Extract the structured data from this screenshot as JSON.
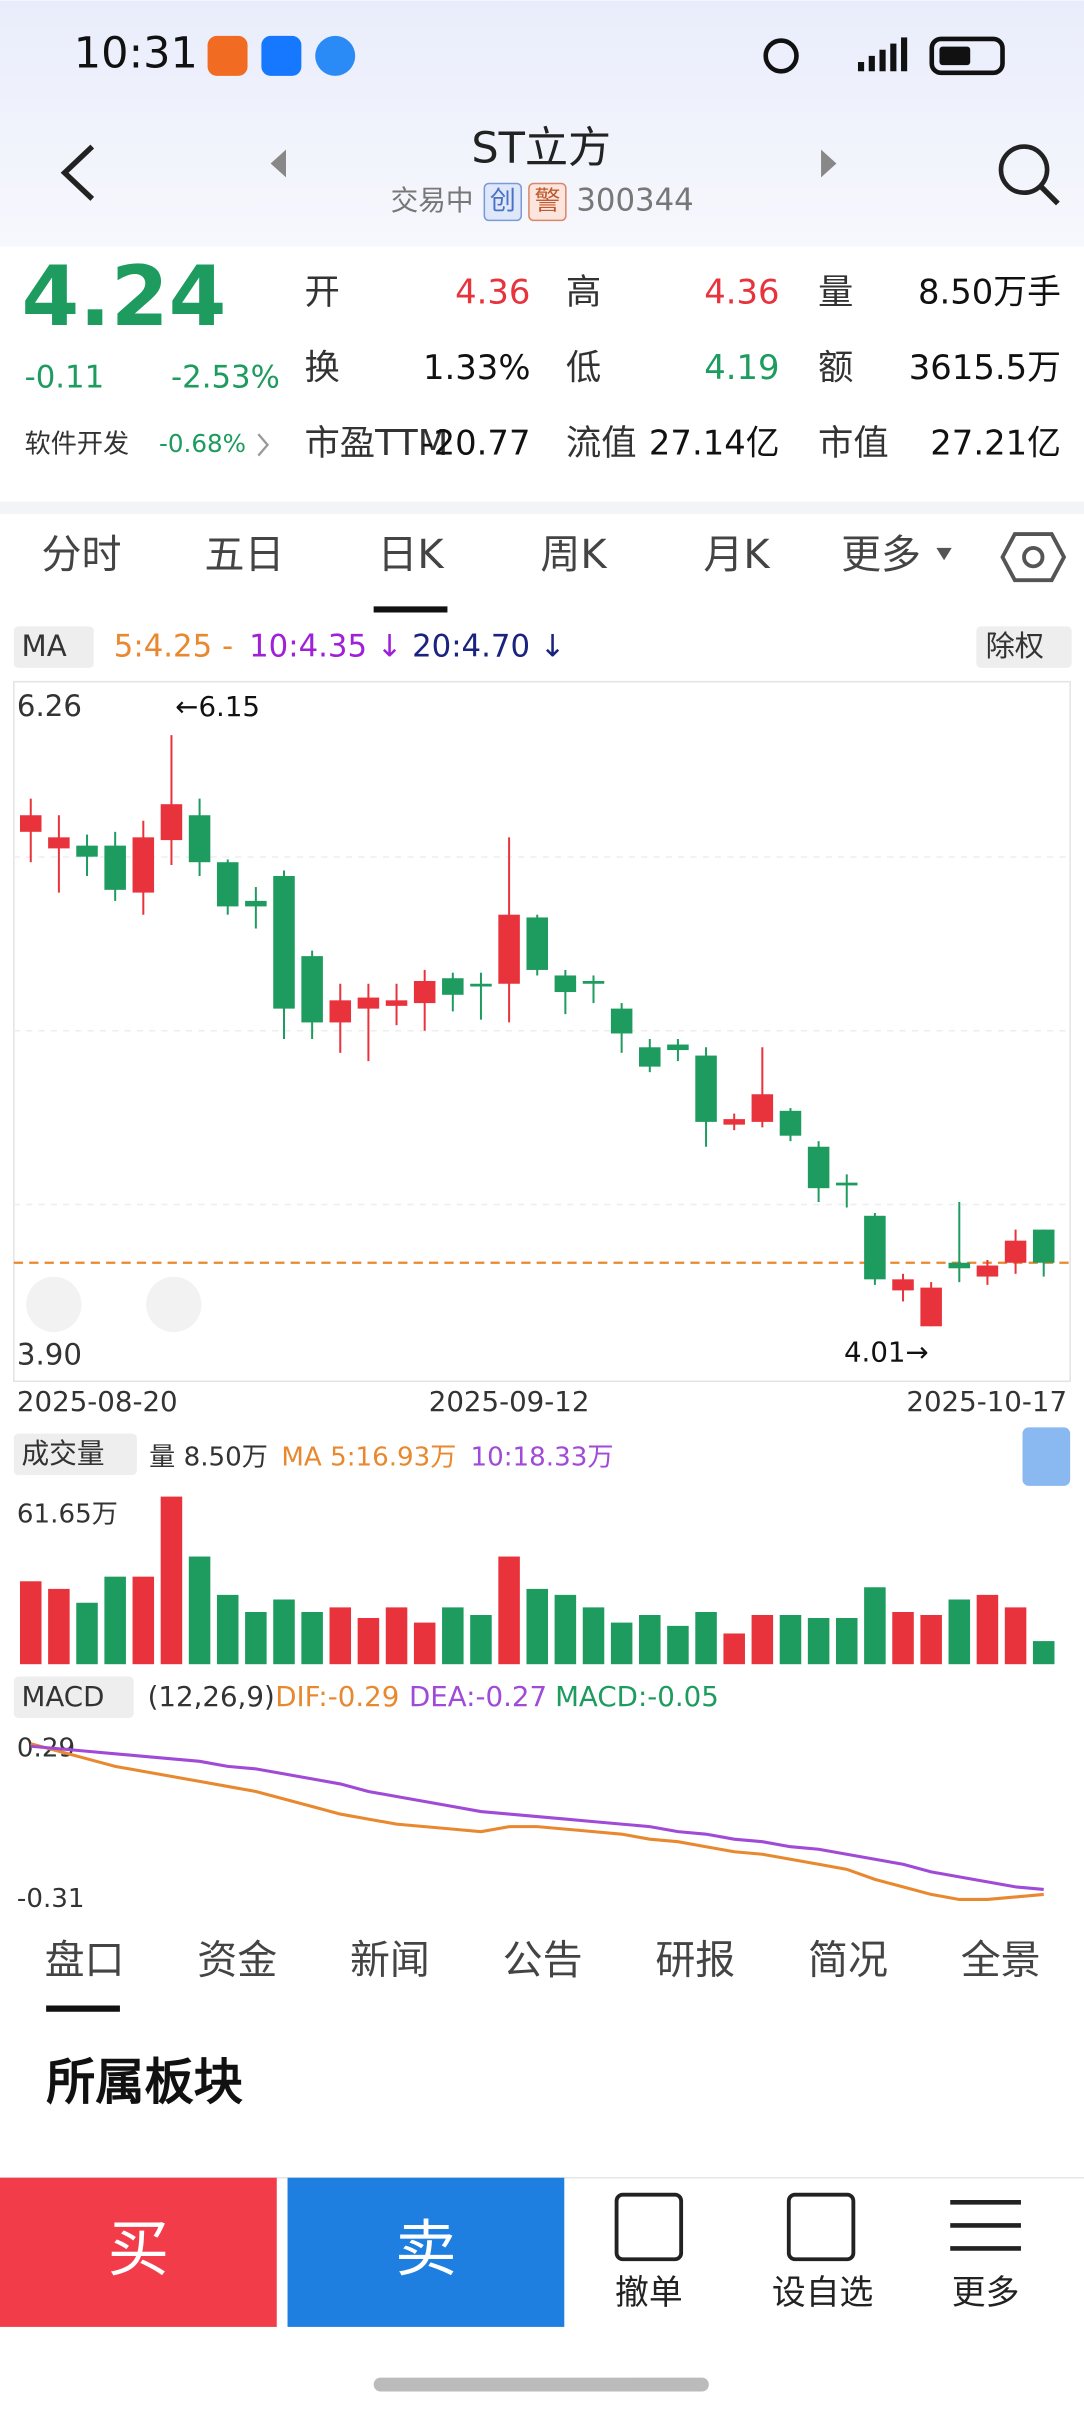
{
  "status_bar": {
    "time": "10:31"
  },
  "header": {
    "title": "ST立方",
    "status": "交易中",
    "badges": [
      "创",
      "警"
    ],
    "code": "300344"
  },
  "quote": {
    "price": "4.24",
    "change": "-0.11",
    "change_pct": "-2.53%",
    "sector": "软件开发",
    "sector_pct": "-0.68%",
    "fields": [
      {
        "label": "开",
        "value": "4.36"
      },
      {
        "label": "高",
        "value": "4.36"
      },
      {
        "label": "量",
        "value": "8.50万手"
      },
      {
        "label": "换",
        "value": "1.33%"
      },
      {
        "label": "低",
        "value": "4.19"
      },
      {
        "label": "额",
        "value": "3615.5万"
      },
      {
        "label": "市盈TTM",
        "value": "-20.77"
      },
      {
        "label": "流值",
        "value": "27.14亿"
      },
      {
        "label": "市值",
        "value": "27.21亿"
      }
    ]
  },
  "period_tabs": [
    "分时",
    "五日",
    "日K",
    "周K",
    "月K",
    "更多"
  ],
  "ma_legend": {
    "label": "MA",
    "ma5": "5:4.25 -",
    "ma10": "10:4.35 ↓",
    "ma20": "20:4.70 ↓",
    "adjust": "除权"
  },
  "chart_data": [
    {
      "type": "candlestick",
      "up_color": "#e8333c",
      "down_color": "#1e9b5f",
      "categories": [
        "2025-08-20",
        null,
        null,
        null,
        null,
        null,
        null,
        null,
        null,
        null,
        null,
        null,
        null,
        null,
        null,
        null,
        null,
        "2025-09-12",
        null,
        null,
        null,
        null,
        null,
        null,
        null,
        null,
        null,
        null,
        null,
        null,
        null,
        null,
        null,
        null,
        null,
        null,
        "2025-10-17"
      ],
      "open": [
        5.8,
        5.74,
        5.75,
        5.75,
        5.58,
        5.77,
        5.86,
        5.69,
        5.55,
        5.64,
        5.35,
        5.11,
        5.16,
        5.17,
        5.18,
        5.27,
        5.25,
        5.25,
        5.49,
        5.28,
        5.26,
        5.16,
        5.02,
        5.03,
        4.99,
        4.74,
        4.75,
        4.79,
        4.66,
        4.53,
        4.41,
        4.14,
        4.01,
        4.24,
        4.19,
        4.24,
        4.36
      ],
      "close": [
        5.86,
        5.78,
        5.71,
        5.59,
        5.78,
        5.9,
        5.69,
        5.53,
        5.53,
        5.16,
        5.11,
        5.19,
        5.2,
        5.19,
        5.26,
        5.21,
        5.24,
        5.5,
        5.3,
        5.22,
        5.25,
        5.07,
        4.95,
        5.01,
        4.75,
        4.76,
        4.85,
        4.7,
        4.51,
        4.52,
        4.18,
        4.18,
        4.15,
        4.22,
        4.23,
        4.32,
        4.24
      ],
      "high": [
        5.92,
        5.86,
        5.79,
        5.8,
        5.84,
        6.15,
        5.92,
        5.7,
        5.6,
        5.66,
        5.37,
        5.25,
        5.25,
        5.25,
        5.3,
        5.29,
        5.29,
        5.78,
        5.5,
        5.3,
        5.28,
        5.18,
        5.05,
        5.05,
        5.02,
        4.78,
        5.02,
        4.8,
        4.68,
        4.56,
        4.42,
        4.2,
        4.17,
        4.46,
        4.25,
        4.36,
        4.36
      ],
      "low": [
        5.69,
        5.58,
        5.64,
        5.55,
        5.5,
        5.68,
        5.64,
        5.5,
        5.45,
        5.05,
        5.05,
        5.0,
        4.97,
        5.1,
        5.08,
        5.15,
        5.12,
        5.11,
        5.28,
        5.14,
        5.18,
        5.0,
        4.93,
        4.97,
        4.66,
        4.72,
        4.73,
        4.68,
        4.46,
        4.44,
        4.16,
        4.1,
        4.01,
        4.17,
        4.16,
        4.2,
        4.19
      ],
      "ylim": [
        3.9,
        6.26
      ],
      "yticks": [
        6.26,
        {
          "value": 3.9,
          "label": "3.90"
        }
      ],
      "annotations": [
        "←6.15",
        "4.01→"
      ]
    },
    {
      "type": "bar",
      "title": "成交量",
      "legend": [
        "量 8.50万",
        "MA 5:16.93万",
        "10:18.33万"
      ],
      "values": [
        30.5,
        27.7,
        22.6,
        32.2,
        32.2,
        61.65,
        39.6,
        25.5,
        19.2,
        23.8,
        19.2,
        20.9,
        17.0,
        20.9,
        15.3,
        20.9,
        18.1,
        39.6,
        27.7,
        25.5,
        20.9,
        15.3,
        18.1,
        14.1,
        19.2,
        11.3,
        18.1,
        18.1,
        17.0,
        17.0,
        28.3,
        19.2,
        18.1,
        23.8,
        25.5,
        20.9,
        8.5
      ],
      "ylim": [
        0,
        61.65
      ],
      "yticks": [
        {
          "value": 61.65,
          "label": "61.65万"
        }
      ]
    },
    {
      "type": "line",
      "title": "MACD",
      "params": "(12,26,9)",
      "legend": [
        "DIF:-0.29",
        "DEA:-0.27",
        "MACD:-0.05"
      ],
      "series": [
        {
          "color": "#e8892f",
          "values": [
            0.31,
            0.28,
            0.25,
            0.22,
            0.2,
            0.18,
            0.16,
            0.14,
            0.12,
            0.09,
            0.06,
            0.03,
            0.01,
            -0.01,
            -0.02,
            -0.03,
            -0.04,
            -0.02,
            -0.02,
            -0.03,
            -0.04,
            -0.05,
            -0.07,
            -0.08,
            -0.1,
            -0.12,
            -0.13,
            -0.15,
            -0.17,
            -0.19,
            -0.23,
            -0.26,
            -0.29,
            -0.31,
            -0.31,
            -0.3,
            -0.29
          ]
        },
        {
          "color": "#a04ad8",
          "values": [
            0.3,
            0.29,
            0.28,
            0.27,
            0.26,
            0.25,
            0.24,
            0.22,
            0.21,
            0.19,
            0.17,
            0.15,
            0.12,
            0.1,
            0.08,
            0.06,
            0.04,
            0.03,
            0.02,
            0.01,
            0.0,
            -0.01,
            -0.02,
            -0.04,
            -0.05,
            -0.07,
            -0.08,
            -0.1,
            -0.11,
            -0.13,
            -0.15,
            -0.17,
            -0.2,
            -0.22,
            -0.24,
            -0.26,
            -0.27
          ]
        }
      ],
      "ylim": [
        -0.31,
        0.29
      ],
      "yticks": [
        0.29,
        -0.31
      ]
    }
  ],
  "detail_tabs": [
    "盘口",
    "资金",
    "新闻",
    "公告",
    "研报",
    "简况",
    "全景"
  ],
  "section_title": "所属板块",
  "bottom_bar": {
    "buy": "买",
    "sell": "卖",
    "actions": [
      "撤单",
      "设自选",
      "更多"
    ]
  }
}
